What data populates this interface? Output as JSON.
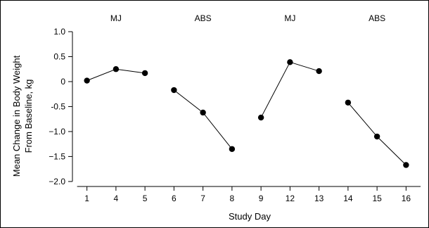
{
  "chart_data": {
    "type": "line",
    "xlabel": "Study Day",
    "ylabel_lines": [
      "Mean Change in Body Weight",
      "From Baseline, kg"
    ],
    "ylim": [
      -2.1,
      1.0
    ],
    "yticks": [
      {
        "value": 1.0,
        "label": "1.0"
      },
      {
        "value": 0.5,
        "label": "0.5"
      },
      {
        "value": 0.0,
        "label": "0"
      },
      {
        "value": -0.5,
        "label": "-0.5"
      },
      {
        "value": -1.0,
        "label": "−1.0"
      },
      {
        "value": -1.5,
        "label": "−1.5"
      },
      {
        "value": -2.0,
        "label": "−2.0"
      }
    ],
    "categories": [
      "1",
      "4",
      "5",
      "6",
      "7",
      "8",
      "9",
      "12",
      "13",
      "14",
      "15",
      "16"
    ],
    "phases": [
      {
        "label": "MJ",
        "start": 0,
        "end": 2
      },
      {
        "label": "ABS",
        "start": 3,
        "end": 5
      },
      {
        "label": "MJ",
        "start": 6,
        "end": 8
      },
      {
        "label": "ABS",
        "start": 9,
        "end": 11
      }
    ],
    "segments": [
      {
        "phase": "MJ",
        "points": [
          {
            "x": "1",
            "y": 0.02
          },
          {
            "x": "4",
            "y": 0.25
          },
          {
            "x": "5",
            "y": 0.17
          }
        ]
      },
      {
        "phase": "ABS",
        "points": [
          {
            "x": "6",
            "y": -0.17
          },
          {
            "x": "7",
            "y": -0.62
          },
          {
            "x": "8",
            "y": -1.35
          }
        ]
      },
      {
        "phase": "MJ",
        "points": [
          {
            "x": "9",
            "y": -0.72
          },
          {
            "x": "12",
            "y": 0.39
          },
          {
            "x": "13",
            "y": 0.21
          }
        ]
      },
      {
        "phase": "ABS",
        "points": [
          {
            "x": "14",
            "y": -0.42
          },
          {
            "x": "15",
            "y": -1.1
          },
          {
            "x": "16",
            "y": -1.67
          }
        ]
      }
    ],
    "grid": false,
    "legend": "none"
  }
}
